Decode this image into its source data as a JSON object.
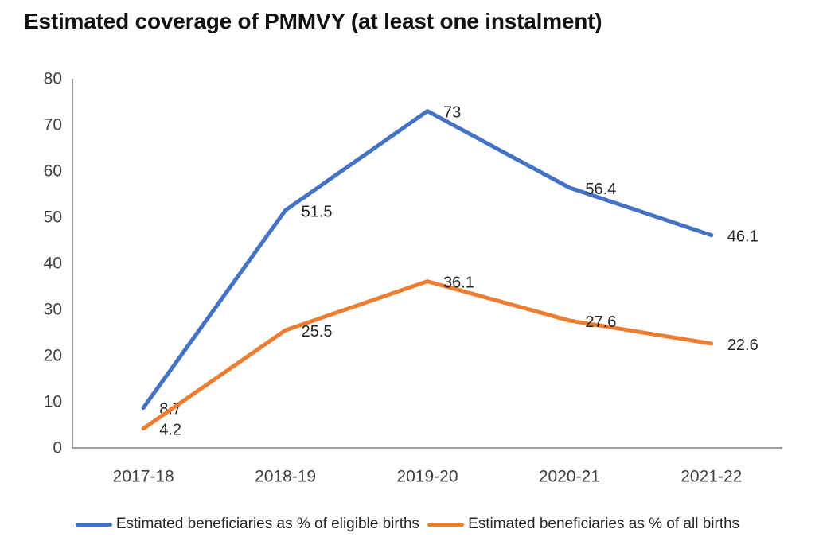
{
  "chart_data": {
    "type": "line",
    "title": "Estimated coverage of PMMVY (at least one instalment)",
    "categories": [
      "2017-18",
      "2018-19",
      "2019-20",
      "2020-21",
      "2021-22"
    ],
    "series": [
      {
        "name": "Estimated beneficiaries as % of eligible births",
        "color": "#4472C4",
        "values": [
          8.7,
          51.5,
          73,
          56.4,
          46.1
        ],
        "data_labels": [
          "8.7",
          "51.5",
          "73",
          "56.4",
          "46.1"
        ]
      },
      {
        "name": "Estimated beneficiaries as % of all births",
        "color": "#ED7D31",
        "values": [
          4.2,
          25.5,
          36.1,
          27.6,
          22.6
        ],
        "data_labels": [
          "4.2",
          "25.5",
          "36.1",
          "27.6",
          "22.6"
        ]
      }
    ],
    "xlabel": "",
    "ylabel": "",
    "ylim": [
      0,
      80
    ],
    "ytick_step": 10,
    "ytick_labels": [
      "0",
      "10",
      "20",
      "30",
      "40",
      "50",
      "60",
      "70",
      "80"
    ],
    "grid": false,
    "legend_position": "bottom"
  },
  "colors": {
    "axis": "#7f7f7f",
    "tick_text": "#3f3f3f",
    "data_label_text": "#262626",
    "title_text": "#111111",
    "legend_text": "#262626",
    "background": "#ffffff"
  }
}
